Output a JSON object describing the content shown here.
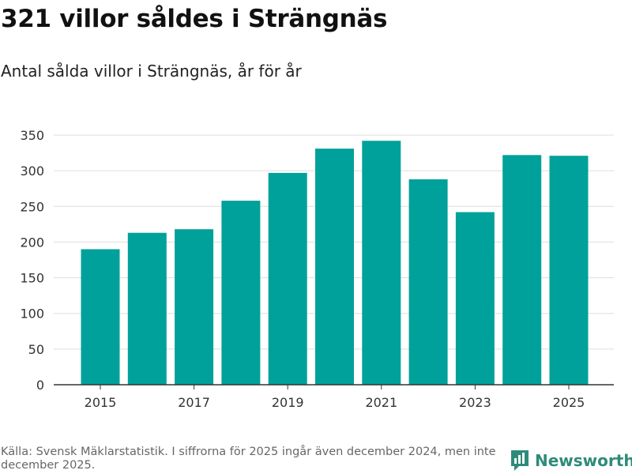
{
  "title": "321 villor såldes i Strängnäs",
  "subtitle": "Antal sålda villor i Strängnäs, år för år",
  "source": "Källa: Svensk Mäklarstatistik. I siffrorna för 2025 ingår även december 2024, men inte december 2025.",
  "brand": {
    "name": "Newsworthy",
    "icon": "newsworthy-logo-icon",
    "color": "#2e8b7a"
  },
  "colors": {
    "bar": "#00a19a",
    "grid": "#dddddd",
    "axis": "#333333"
  },
  "chart_data": {
    "type": "bar",
    "title": "321 villor såldes i Strängnäs",
    "subtitle": "Antal sålda villor i Strängnäs, år för år",
    "xlabel": "",
    "ylabel": "",
    "categories": [
      "2015",
      "2016",
      "2017",
      "2018",
      "2019",
      "2020",
      "2021",
      "2022",
      "2023",
      "2024",
      "2025"
    ],
    "values": [
      190,
      213,
      218,
      258,
      297,
      331,
      342,
      288,
      242,
      322,
      321
    ],
    "ylim": [
      0,
      350
    ],
    "yticks": [
      0,
      50,
      100,
      150,
      200,
      250,
      300,
      350
    ],
    "xtick_labels": [
      "2015",
      "2017",
      "2019",
      "2021",
      "2023",
      "2025"
    ],
    "grid": true,
    "legend": "none"
  }
}
